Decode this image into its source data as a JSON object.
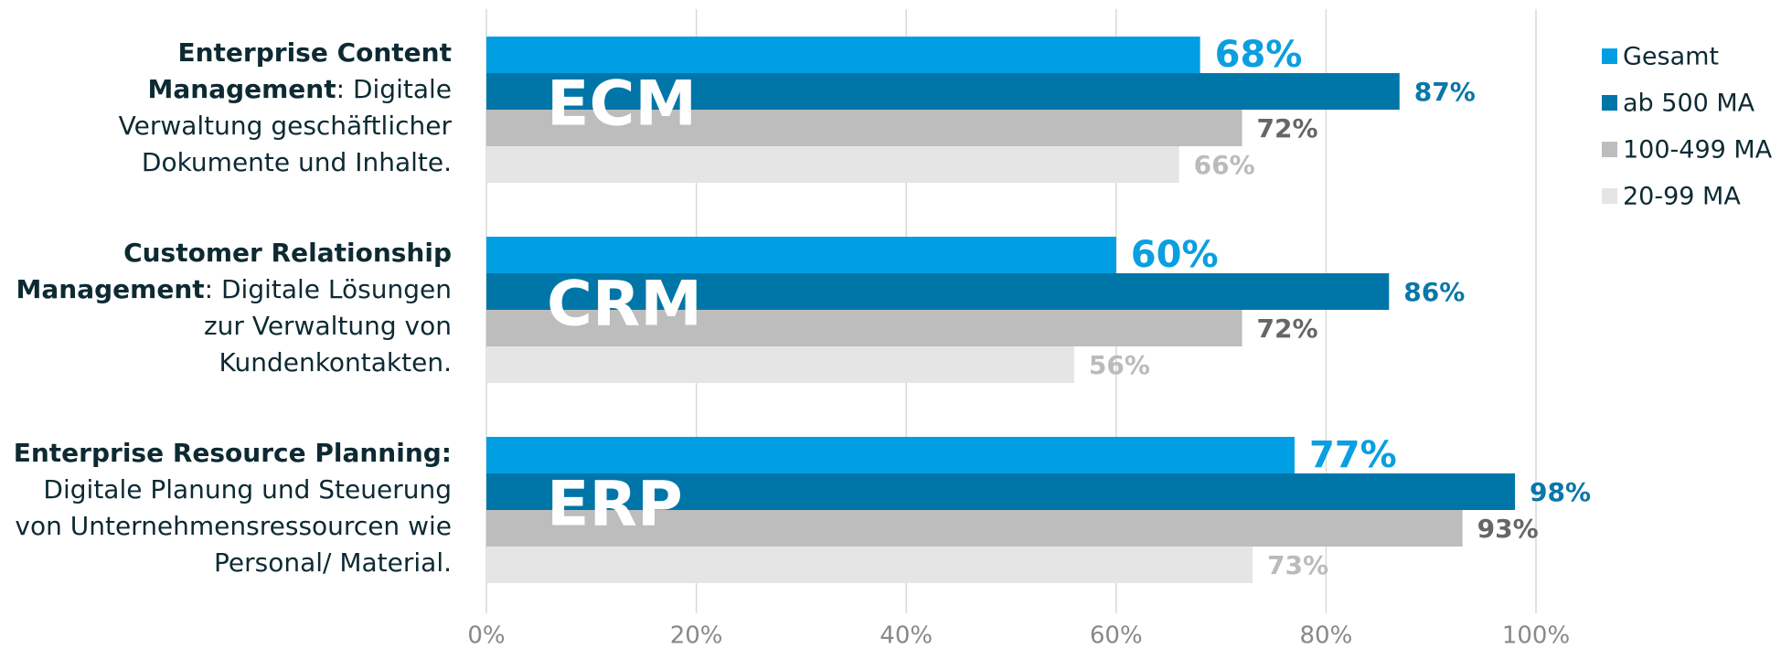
{
  "chart_data": {
    "type": "bar",
    "orientation": "horizontal",
    "categories": [
      "Enterprise Content Management",
      "Customer Relationship Management",
      "Enterprise Resource Planning:"
    ],
    "descriptions": [
      ": Digitale Verwaltung geschäftlicher Dokumente und Inhalte.",
      ": Digitale Lösungen zur Verwaltung von Kundenkontakten.",
      "Digitale Planung und Steuerung von Unternehmensressourcen wie Personal/ Material."
    ],
    "abbreviations": [
      "ECM",
      "CRM",
      "ERP"
    ],
    "series": [
      {
        "name": "Gesamt",
        "color": "#009fe3",
        "label_color": "#0a9fe0",
        "values": [
          68,
          60,
          77
        ],
        "value_labels": [
          "68%",
          "60%",
          "77%"
        ]
      },
      {
        "name": "ab 500 MA",
        "color": "#0076a8",
        "label_color": "#0a77aa",
        "values": [
          87,
          86,
          98
        ],
        "value_labels": [
          "87%",
          "86%",
          "98%"
        ]
      },
      {
        "name": "100-499 MA",
        "color": "#bdbdbd",
        "label_color": "#666666",
        "values": [
          72,
          72,
          93
        ],
        "value_labels": [
          "72%",
          "72%",
          "93%"
        ]
      },
      {
        "name": "20-99 MA",
        "color": "#e5e5e5",
        "label_color": "#bbbbbb",
        "values": [
          66,
          56,
          73
        ],
        "value_labels": [
          "66%",
          "56%",
          "73%"
        ]
      }
    ],
    "xlim": [
      0,
      100
    ],
    "xticks": [
      {
        "value": 0,
        "label": "0%"
      },
      {
        "value": 20,
        "label": "20%"
      },
      {
        "value": 40,
        "label": "40%"
      },
      {
        "value": 60,
        "label": "60%"
      },
      {
        "value": 80,
        "label": "80%"
      },
      {
        "value": 100,
        "label": "100%"
      }
    ],
    "grid": true,
    "legend": "right"
  }
}
